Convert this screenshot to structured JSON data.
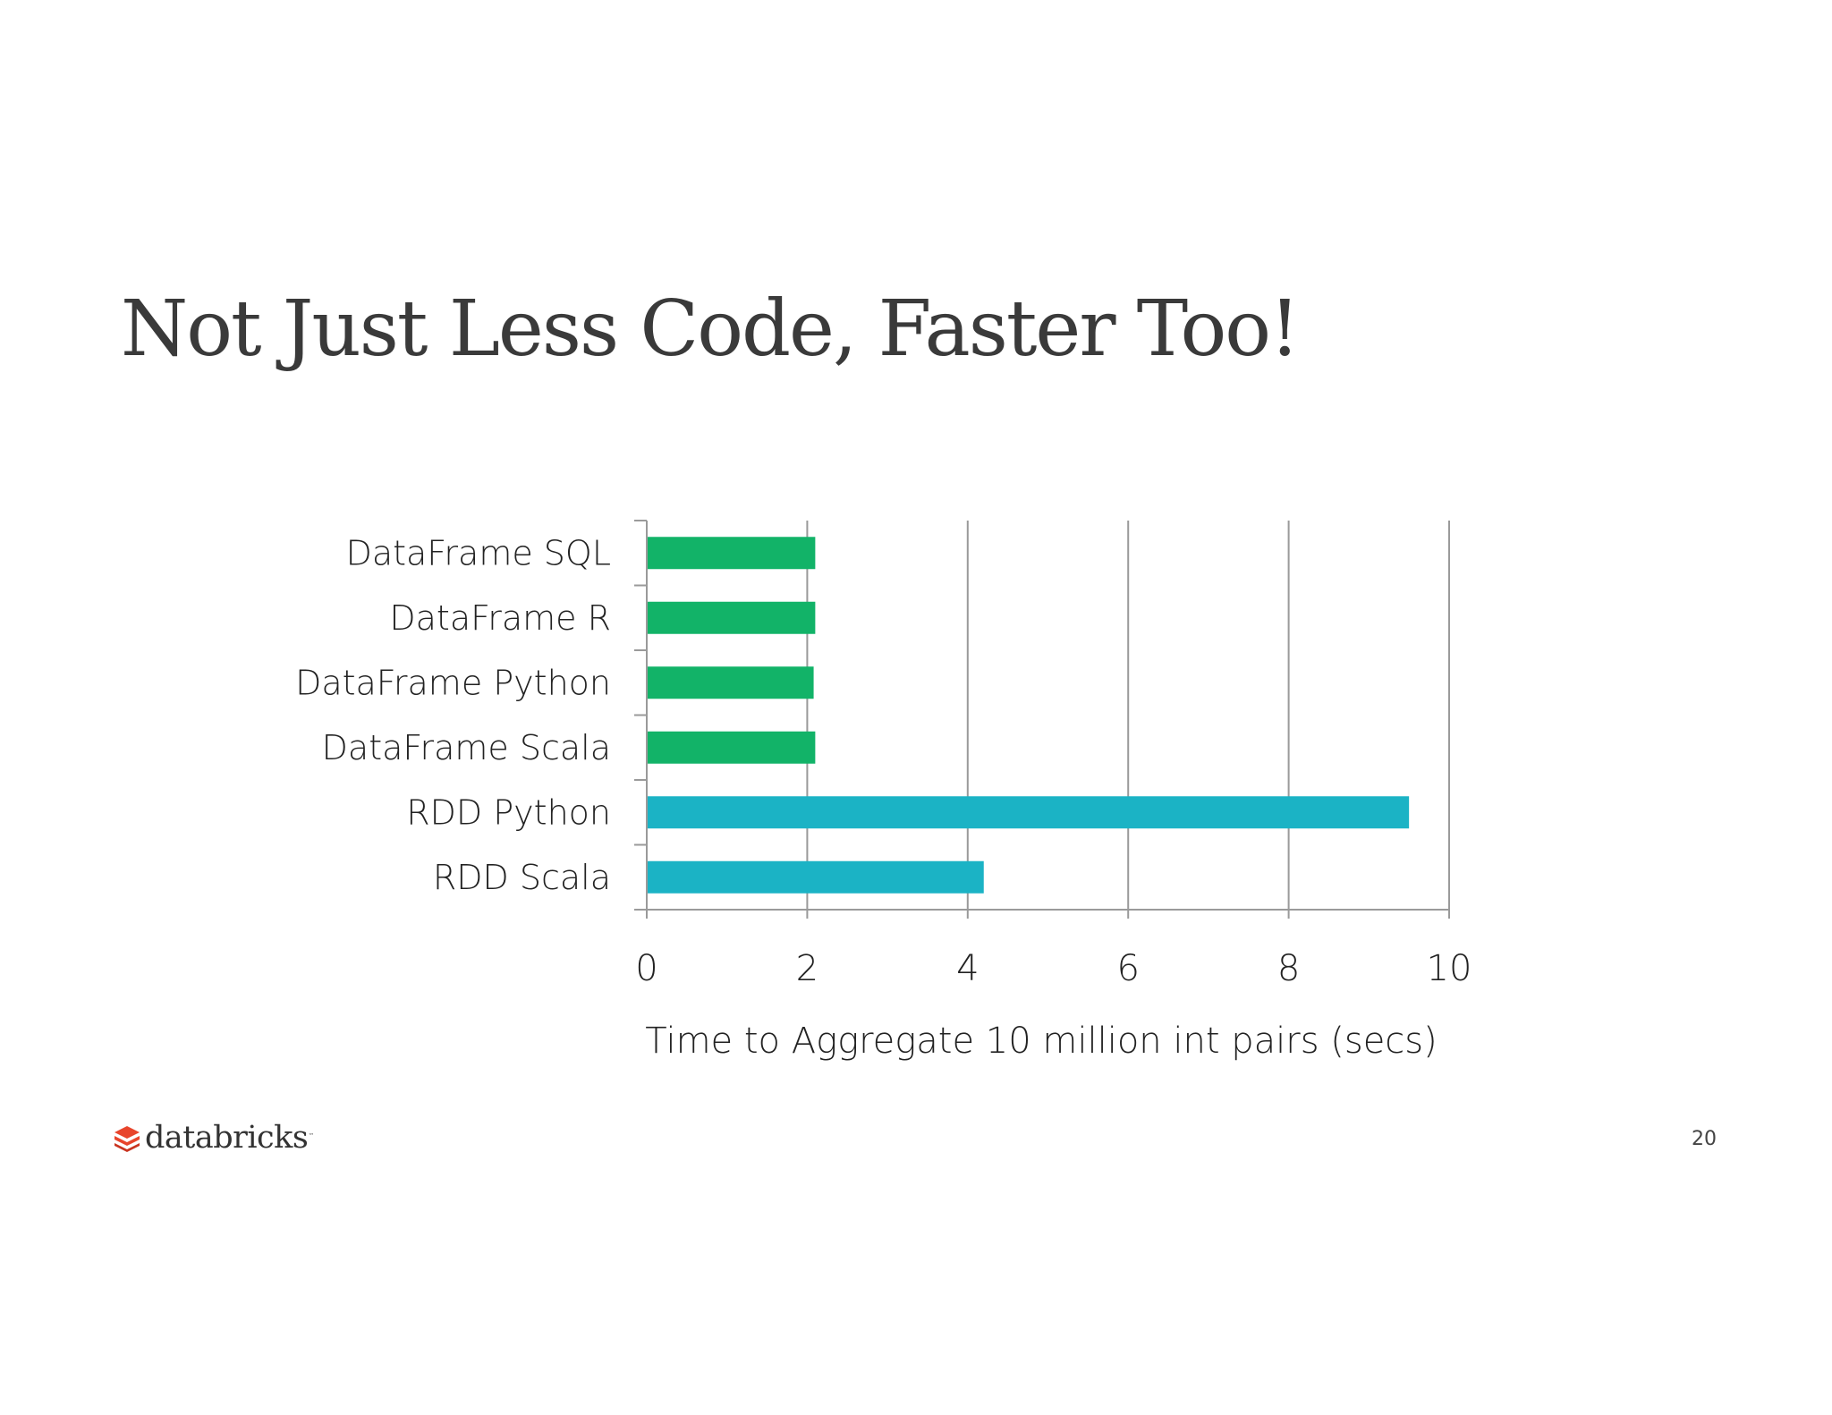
{
  "slide": {
    "title": "Not Just Less Code, Faster Too!",
    "page_number": "20",
    "brand_name": "databricks",
    "brand_mark": "™"
  },
  "chart_data": {
    "type": "bar",
    "orientation": "horizontal",
    "categories": [
      "DataFrame SQL",
      "DataFrame R",
      "DataFrame Python",
      "DataFrame Scala",
      "RDD Python",
      "RDD Scala"
    ],
    "values": [
      2.1,
      2.1,
      2.08,
      2.1,
      9.5,
      4.2
    ],
    "bar_colors": [
      "#12b368",
      "#12b368",
      "#12b368",
      "#12b368",
      "#1bb3c5",
      "#1bb3c5"
    ],
    "xlabel": "Time to Aggregate 10 million int pairs (secs)",
    "ylabel": "",
    "xlim": [
      0,
      10
    ],
    "xticks": [
      0,
      2,
      4,
      6,
      8,
      10
    ],
    "grid": "vertical",
    "legend": "none"
  },
  "colors": {
    "title": "#3a3a3a",
    "axis": "#9a9a9a",
    "dataframe_bar": "#12b368",
    "rdd_bar": "#1bb3c5",
    "logo": "#e8452c"
  },
  "icons": {
    "logo": "databricks-stack-icon"
  }
}
